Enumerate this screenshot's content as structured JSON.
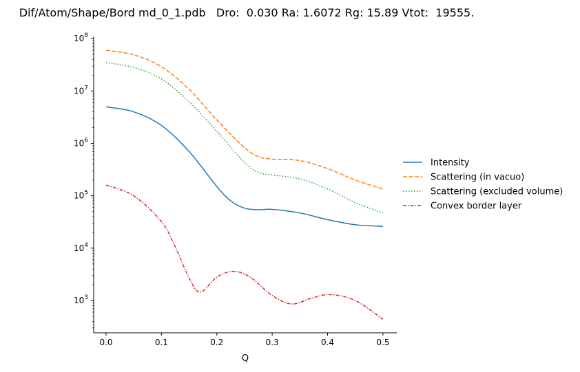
{
  "chart_data": {
    "type": "line",
    "title": "Dif/Atom/Shape/Bord md_0_1.pdb   Dro:  0.030 Ra: 1.6072 Rg: 15.89 Vtot:  19555.",
    "xlabel": "Q",
    "ylabel": "",
    "xlim": [
      -0.0224,
      0.525
    ],
    "ylim": [
      242,
      110000000
    ],
    "yscale": "log",
    "grid": false,
    "legend_position": "outside-right",
    "xticks": [
      "0.0",
      "0.1",
      "0.2",
      "0.3",
      "0.4",
      "0.5"
    ],
    "xtick_values": [
      0,
      0.1,
      0.2,
      0.3,
      0.4,
      0.5
    ],
    "yticks": [
      {
        "value": 1000,
        "base": "10",
        "exp": "3"
      },
      {
        "value": 10000,
        "base": "10",
        "exp": "4"
      },
      {
        "value": 100000,
        "base": "10",
        "exp": "5"
      },
      {
        "value": 1000000,
        "base": "10",
        "exp": "6"
      },
      {
        "value": 10000000,
        "base": "10",
        "exp": "7"
      },
      {
        "value": 100000000,
        "base": "10",
        "exp": "8"
      }
    ],
    "series": [
      {
        "name": "Intensity",
        "color": "#1f77b4",
        "style": "solid",
        "x": [
          0,
          0.05,
          0.1,
          0.15,
          0.2,
          0.225,
          0.25,
          0.275,
          0.3,
          0.35,
          0.4,
          0.45,
          0.5
        ],
        "y": [
          5000000.0,
          4000000.0,
          2200000.0,
          700000.0,
          150000.0,
          80000.0,
          58000.0,
          54000.0,
          55000.0,
          47000.0,
          35000.0,
          28000.0,
          26000.0
        ]
      },
      {
        "name": "Scattering (in vacuo)",
        "color": "#ff7f0e",
        "style": "dashed",
        "x": [
          0,
          0.05,
          0.1,
          0.15,
          0.2,
          0.25,
          0.275,
          0.3,
          0.35,
          0.4,
          0.45,
          0.5
        ],
        "y": [
          60000000.0,
          49000000.0,
          29000000.0,
          10700000.0,
          2800000.0,
          830000.0,
          560000.0,
          500000.0,
          470000.0,
          330000.0,
          200000.0,
          135000.0
        ]
      },
      {
        "name": "Scattering (excluded volume)",
        "color": "#2ca02c",
        "style": "dotted",
        "x": [
          0,
          0.05,
          0.1,
          0.15,
          0.2,
          0.25,
          0.275,
          0.3,
          0.35,
          0.4,
          0.45,
          0.5
        ],
        "y": [
          35000000.0,
          28000000.0,
          17000000.0,
          6200000.0,
          1700000.0,
          430000.0,
          280000.0,
          250000.0,
          210000.0,
          135000.0,
          74000.0,
          47000.0
        ]
      },
      {
        "name": "Convex border layer",
        "color": "#d62728",
        "style": "dashdot",
        "x": [
          0,
          0.05,
          0.1,
          0.125,
          0.15,
          0.17,
          0.2,
          0.23,
          0.26,
          0.3,
          0.335,
          0.37,
          0.405,
          0.45,
          0.5
        ],
        "y": [
          160000.0,
          100000.0,
          32000.0,
          10500.0,
          2700.0,
          1450.0,
          2800.0,
          3600.0,
          2800.0,
          1250.0,
          860,
          1100.0,
          1300.0,
          1000.0,
          440
        ]
      }
    ]
  }
}
